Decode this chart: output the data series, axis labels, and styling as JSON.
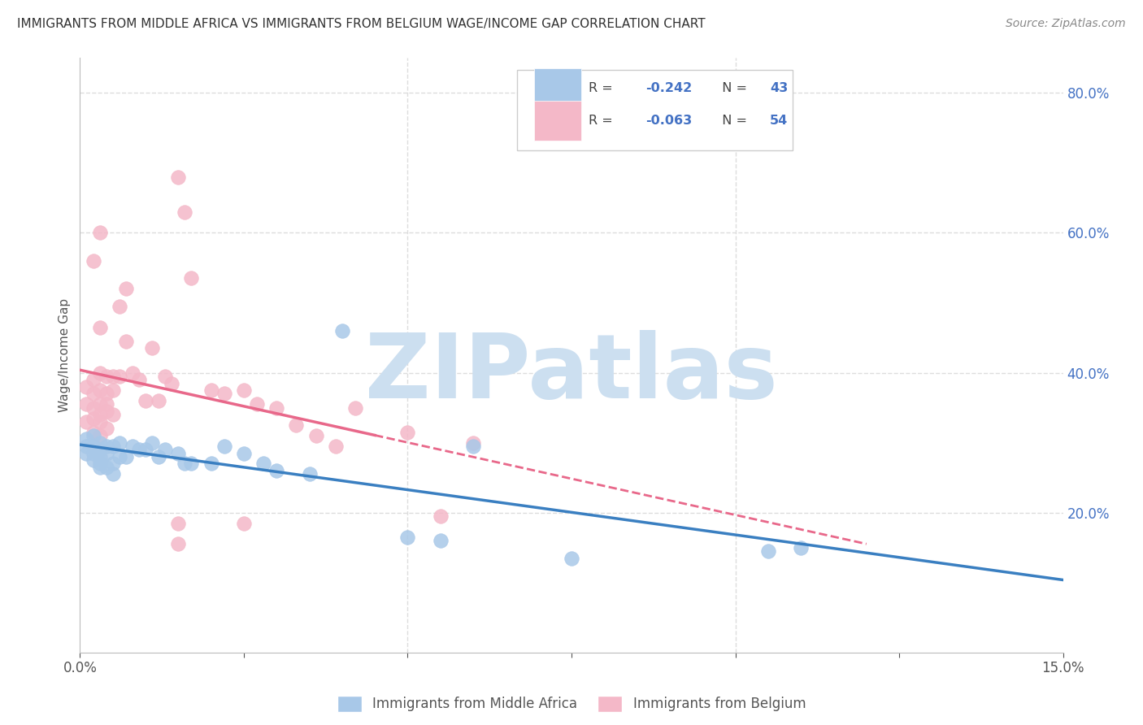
{
  "title": "IMMIGRANTS FROM MIDDLE AFRICA VS IMMIGRANTS FROM BELGIUM WAGE/INCOME GAP CORRELATION CHART",
  "source": "Source: ZipAtlas.com",
  "ylabel": "Wage/Income Gap",
  "xmin": 0.0,
  "xmax": 0.15,
  "ymin": 0.0,
  "ymax": 0.85,
  "yticks": [
    0.2,
    0.4,
    0.6,
    0.8
  ],
  "ytick_labels": [
    "20.0%",
    "40.0%",
    "60.0%",
    "80.0%"
  ],
  "blue_color": "#a8c8e8",
  "pink_color": "#f4b8c8",
  "blue_line_color": "#3a7fc1",
  "pink_line_color": "#e8688a",
  "blue_intercept": 0.305,
  "blue_slope": -0.88,
  "pink_intercept": 0.345,
  "pink_slope": -0.28,
  "blue_x": [
    0.001,
    0.001,
    0.001,
    0.002,
    0.002,
    0.002,
    0.002,
    0.003,
    0.003,
    0.003,
    0.003,
    0.003,
    0.004,
    0.004,
    0.004,
    0.005,
    0.005,
    0.005,
    0.006,
    0.006,
    0.007,
    0.008,
    0.009,
    0.01,
    0.011,
    0.012,
    0.013,
    0.015,
    0.016,
    0.017,
    0.02,
    0.022,
    0.025,
    0.028,
    0.03,
    0.035,
    0.04,
    0.05,
    0.055,
    0.06,
    0.075,
    0.105,
    0.11
  ],
  "blue_y": [
    0.305,
    0.295,
    0.285,
    0.31,
    0.295,
    0.285,
    0.275,
    0.3,
    0.29,
    0.28,
    0.27,
    0.265,
    0.295,
    0.285,
    0.265,
    0.295,
    0.27,
    0.255,
    0.3,
    0.28,
    0.28,
    0.295,
    0.29,
    0.29,
    0.3,
    0.28,
    0.29,
    0.285,
    0.27,
    0.27,
    0.27,
    0.295,
    0.285,
    0.27,
    0.26,
    0.255,
    0.46,
    0.165,
    0.16,
    0.295,
    0.135,
    0.145,
    0.15
  ],
  "pink_x": [
    0.001,
    0.001,
    0.001,
    0.002,
    0.002,
    0.002,
    0.002,
    0.002,
    0.003,
    0.003,
    0.003,
    0.003,
    0.003,
    0.003,
    0.004,
    0.004,
    0.004,
    0.004,
    0.004,
    0.005,
    0.005,
    0.005,
    0.006,
    0.006,
    0.007,
    0.007,
    0.008,
    0.009,
    0.01,
    0.011,
    0.012,
    0.013,
    0.014,
    0.015,
    0.016,
    0.017,
    0.02,
    0.022,
    0.025,
    0.027,
    0.03,
    0.033,
    0.036,
    0.039,
    0.042,
    0.05,
    0.055,
    0.06,
    0.002,
    0.003,
    0.003,
    0.015,
    0.015,
    0.025
  ],
  "pink_y": [
    0.38,
    0.355,
    0.33,
    0.39,
    0.37,
    0.35,
    0.335,
    0.315,
    0.4,
    0.375,
    0.355,
    0.34,
    0.33,
    0.31,
    0.395,
    0.37,
    0.355,
    0.345,
    0.32,
    0.395,
    0.375,
    0.34,
    0.495,
    0.395,
    0.52,
    0.445,
    0.4,
    0.39,
    0.36,
    0.435,
    0.36,
    0.395,
    0.385,
    0.185,
    0.63,
    0.535,
    0.375,
    0.37,
    0.375,
    0.355,
    0.35,
    0.325,
    0.31,
    0.295,
    0.35,
    0.315,
    0.195,
    0.3,
    0.56,
    0.6,
    0.465,
    0.68,
    0.155,
    0.185
  ],
  "watermark_text": "ZIPatlas",
  "watermark_color": "#ccdff0",
  "grid_color": "#dddddd",
  "background_color": "#ffffff",
  "legend_R1": "-0.242",
  "legend_N1": "43",
  "legend_R2": "-0.063",
  "legend_N2": "54",
  "legend_text_color": "#555555",
  "legend_val_color": "#4472c4",
  "bottom_legend_label1": "Immigrants from Middle Africa",
  "bottom_legend_label2": "Immigrants from Belgium"
}
